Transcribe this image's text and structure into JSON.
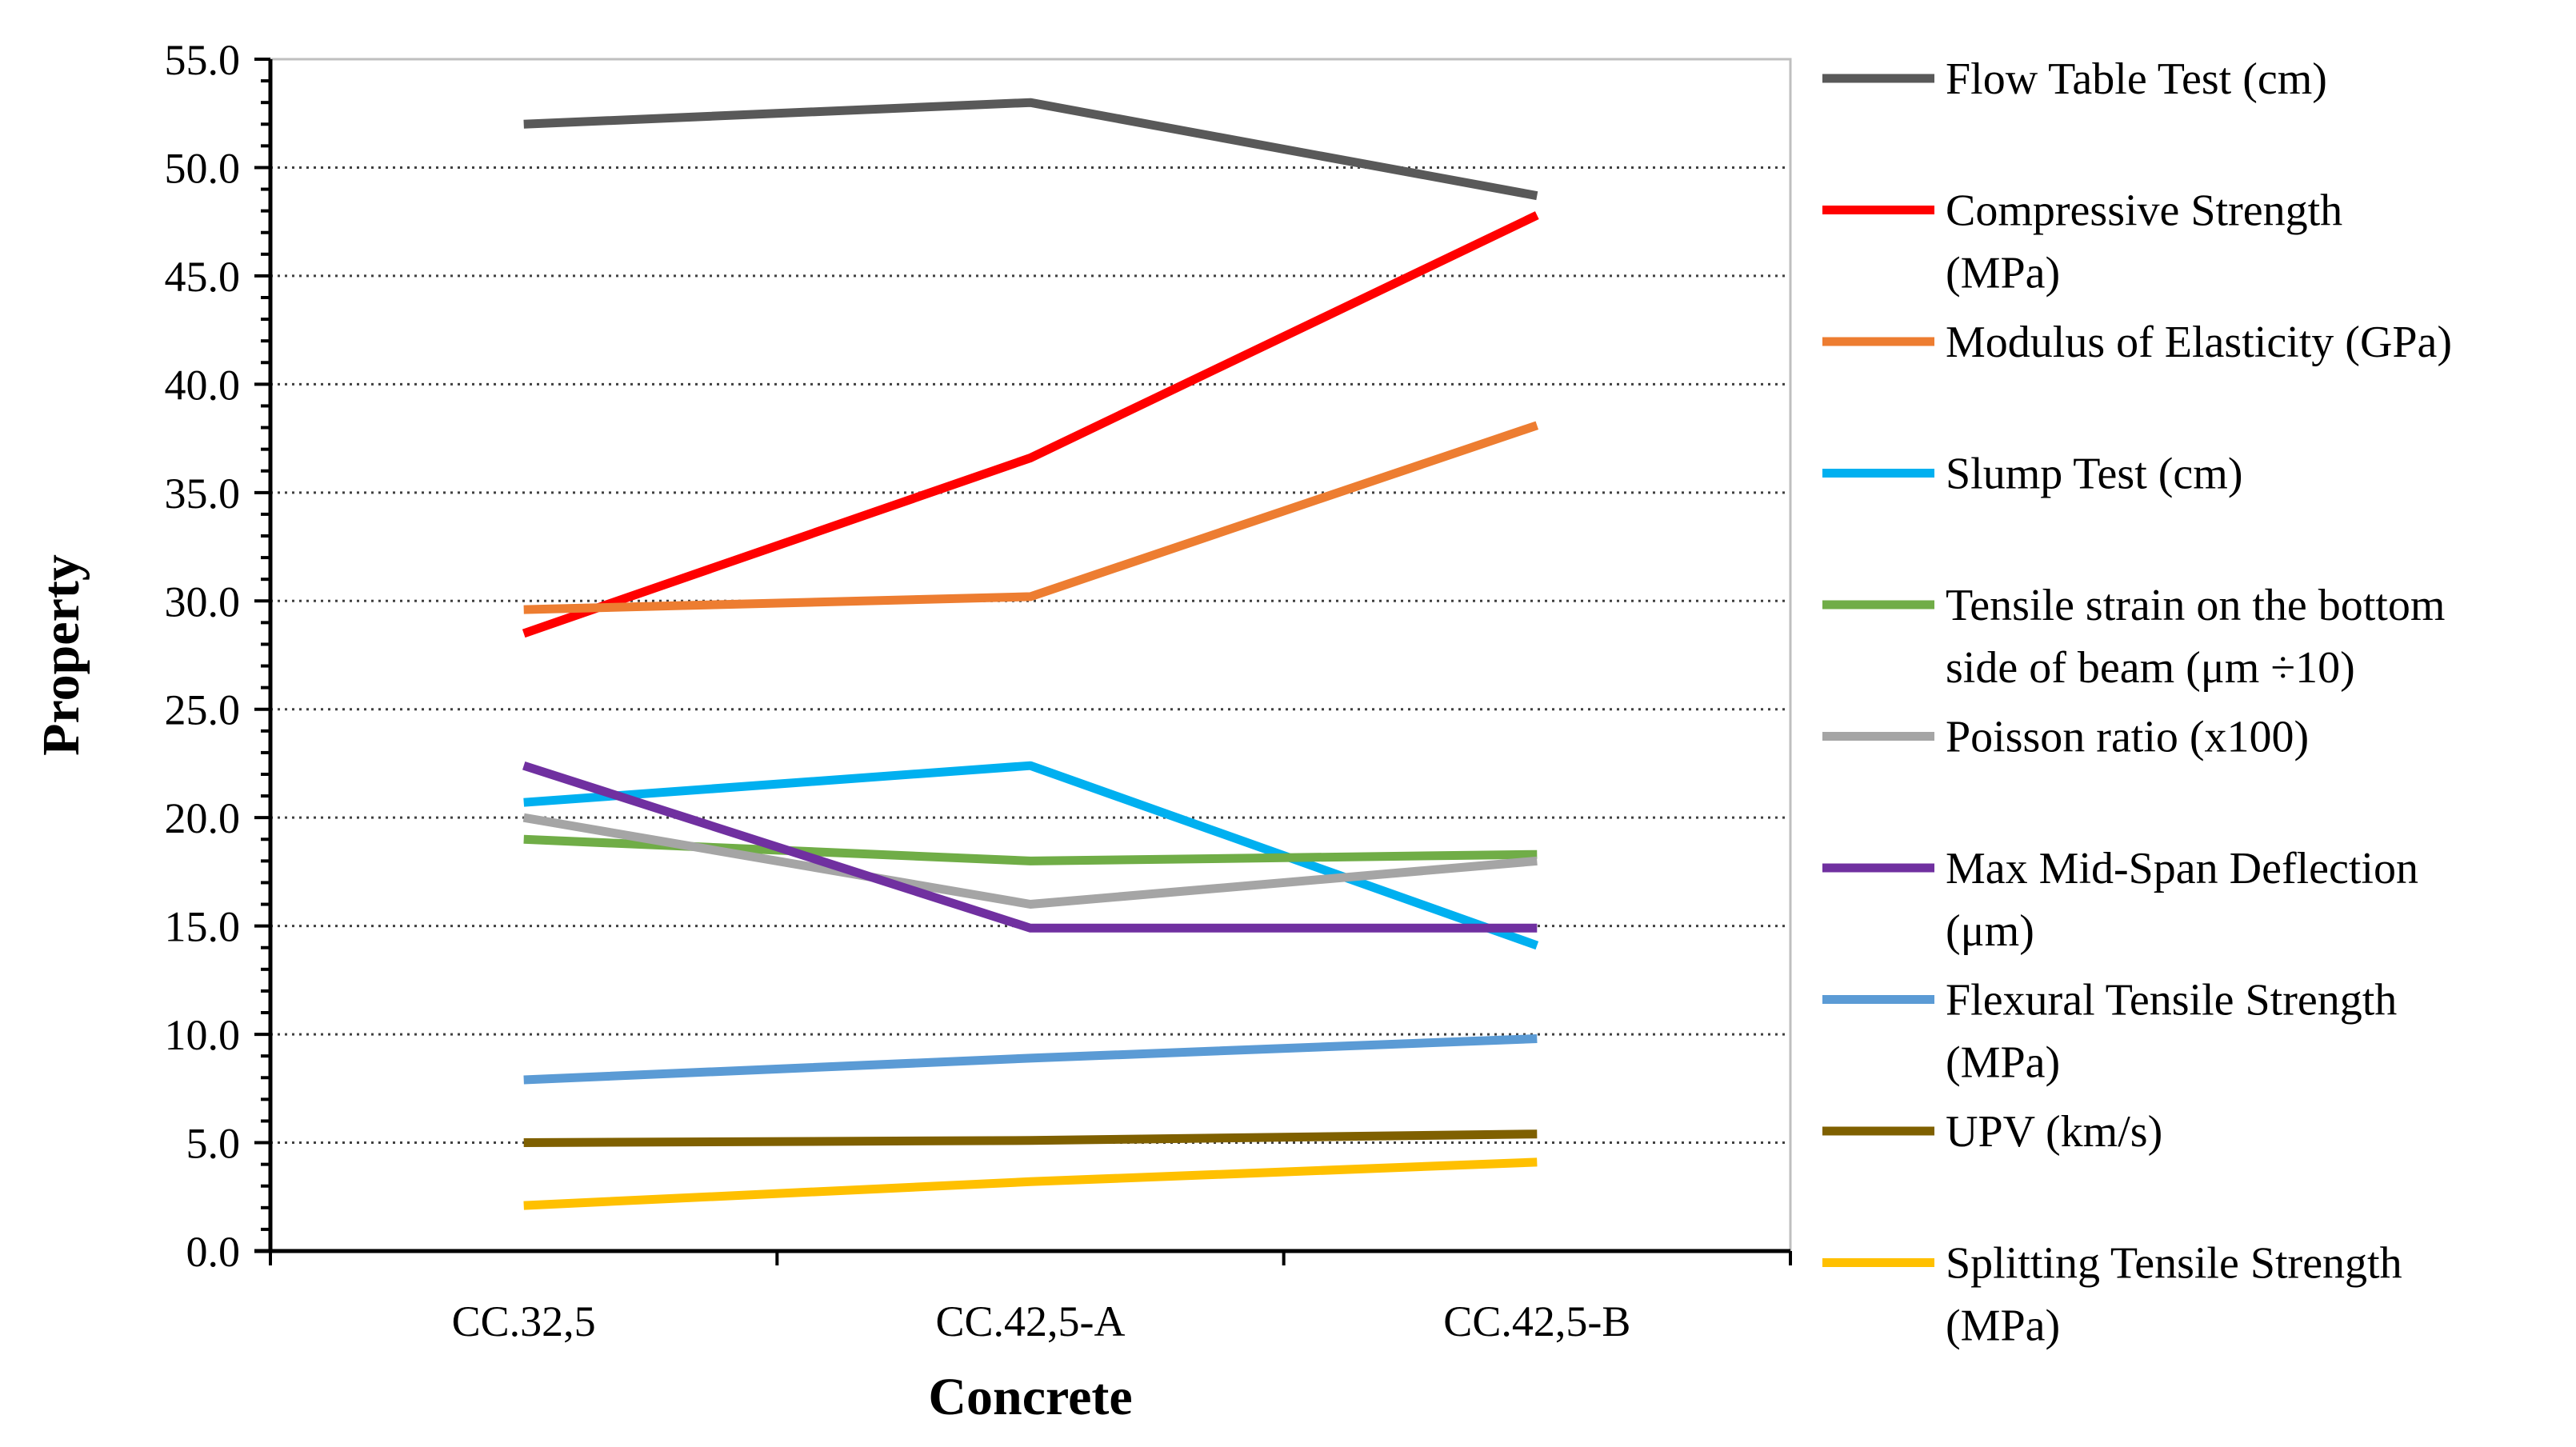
{
  "chart_data": {
    "type": "line",
    "title": "",
    "xlabel": "Concrete",
    "ylabel": "Property",
    "categories": [
      "CC.32,5",
      "CC.42,5-A",
      "CC.42,5-B"
    ],
    "ylim": [
      0,
      55
    ],
    "y_major_step": 5,
    "y_minor_step": 1,
    "y_tick_labels": [
      "0.0",
      "5.0",
      "10.0",
      "15.0",
      "20.0",
      "25.0",
      "30.0",
      "35.0",
      "40.0",
      "45.0",
      "50.0",
      "55.0"
    ],
    "grid": "horizontal dotted",
    "legend_position": "right",
    "series": [
      {
        "name": "Flow Table Test (cm)",
        "legend_lines": [
          "Flow Table Test (cm)"
        ],
        "color": "#595959",
        "values": [
          52.0,
          53.0,
          48.7
        ]
      },
      {
        "name": "Compressive Strength (MPa)",
        "legend_lines": [
          "Compressive Strength",
          "(MPa)"
        ],
        "color": "#ff0000",
        "values": [
          28.5,
          36.6,
          47.8
        ]
      },
      {
        "name": "Modulus of Elasticity (GPa)",
        "legend_lines": [
          "Modulus of Elasticity (GPa)"
        ],
        "color": "#ed7d31",
        "values": [
          29.6,
          30.2,
          38.1
        ]
      },
      {
        "name": "Slump Test (cm)",
        "legend_lines": [
          "Slump Test (cm)"
        ],
        "color": "#00b0f0",
        "values": [
          20.7,
          22.4,
          14.1
        ]
      },
      {
        "name": "Tensile strain on the bottom side of beam (μm ÷10)",
        "legend_lines": [
          "Tensile strain on the bottom",
          "side of beam (μm ÷10)"
        ],
        "color": "#70ad47",
        "values": [
          19.0,
          18.0,
          18.3
        ]
      },
      {
        "name": "Poisson ratio (x100)",
        "legend_lines": [
          "Poisson ratio (x100)"
        ],
        "color": "#a5a5a5",
        "values": [
          20.0,
          16.0,
          18.0
        ]
      },
      {
        "name": "Max Mid-Span Deflection (μm)",
        "legend_lines": [
          "Max Mid-Span Deflection",
          "(μm)"
        ],
        "color": "#7030a0",
        "values": [
          22.4,
          14.9,
          14.9
        ]
      },
      {
        "name": "Flexural Tensile Strength (MPa)",
        "legend_lines": [
          "Flexural Tensile Strength",
          "(MPa)"
        ],
        "color": "#5b9bd5",
        "values": [
          7.9,
          8.9,
          9.8
        ]
      },
      {
        "name": "UPV (km/s)",
        "legend_lines": [
          "UPV (km/s)"
        ],
        "color": "#7f6000",
        "values": [
          5.0,
          5.1,
          5.4
        ]
      },
      {
        "name": "Splitting Tensile Strength (MPa)",
        "legend_lines": [
          "Splitting Tensile Strength",
          "(MPa)"
        ],
        "color": "#ffc000",
        "values": [
          2.1,
          3.2,
          4.1
        ]
      }
    ]
  }
}
